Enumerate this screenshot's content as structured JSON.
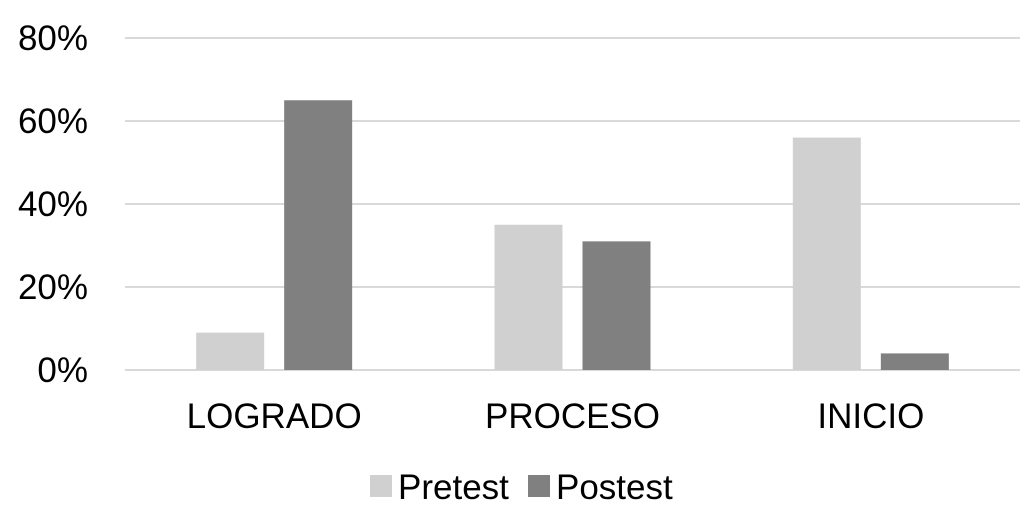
{
  "chart_data": {
    "type": "bar",
    "categories": [
      "LOGRADO",
      "PROCESO",
      "INICIO"
    ],
    "series": [
      {
        "name": "Pretest",
        "values": [
          9,
          35,
          56
        ],
        "color": "#d0d0d0"
      },
      {
        "name": "Postest",
        "values": [
          65,
          31,
          4
        ],
        "color": "#808080"
      }
    ],
    "y_tick_values": [
      0,
      20,
      40,
      60,
      80
    ],
    "y_tick_labels": [
      "0%",
      "20%",
      "40%",
      "60%",
      "80%"
    ],
    "ylim": [
      0,
      80
    ],
    "grid": true,
    "legend_position": "bottom",
    "title": "",
    "xlabel": "",
    "ylabel": ""
  }
}
